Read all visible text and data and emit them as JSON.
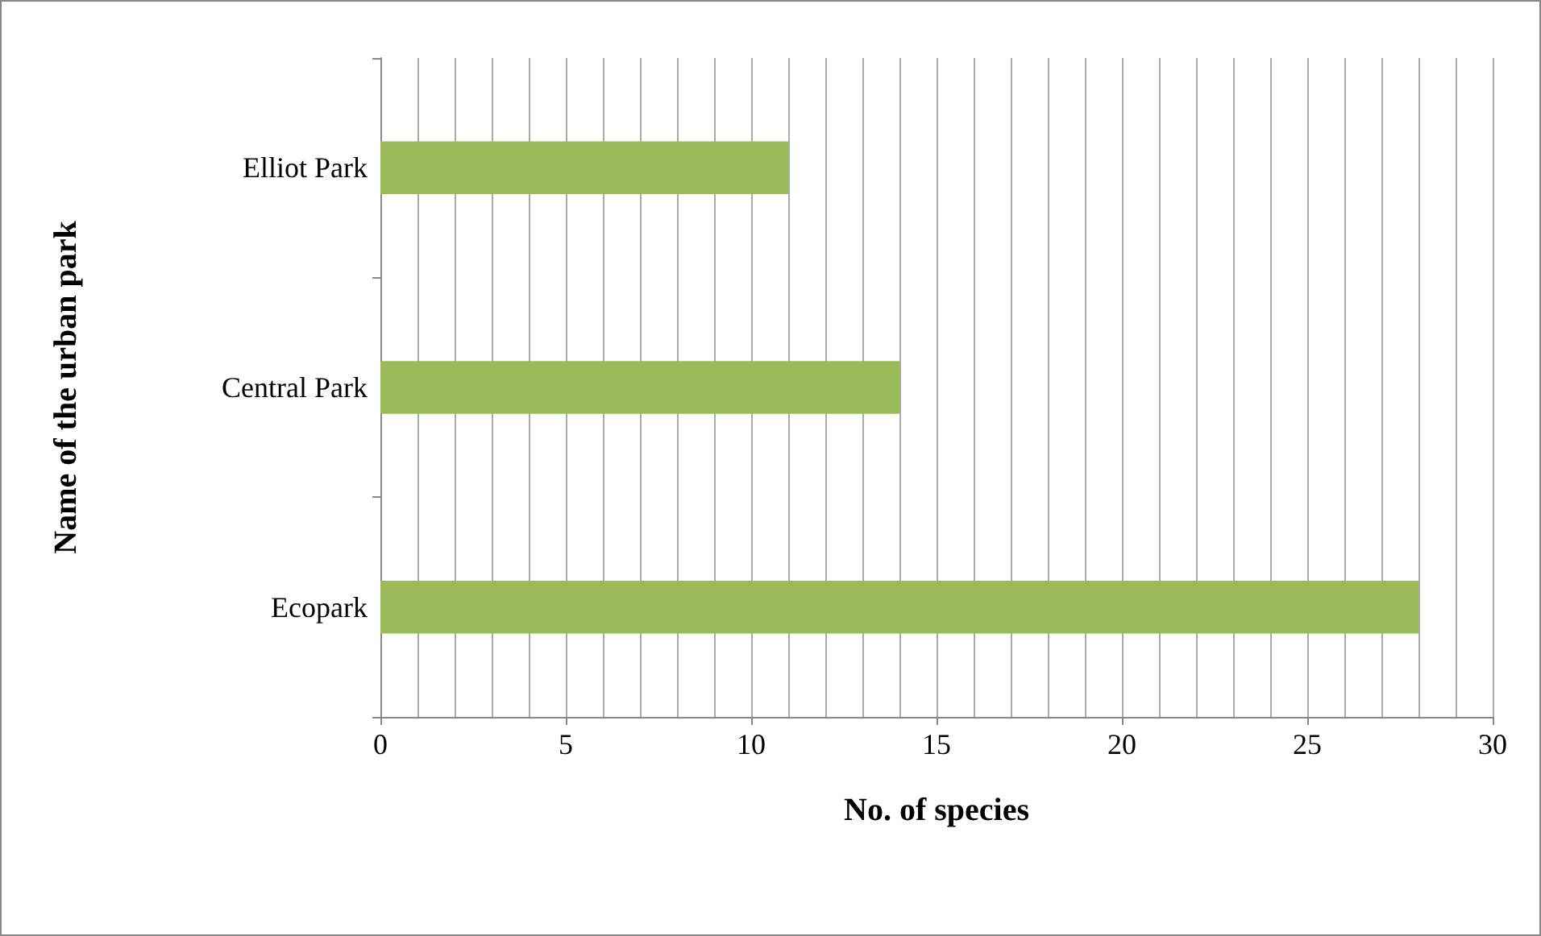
{
  "chart_data": {
    "type": "bar",
    "orientation": "horizontal",
    "xlabel": "No. of species",
    "ylabel": "Name of the urban park",
    "categories": [
      "Elliot Park",
      "Central Park",
      "Ecopark"
    ],
    "values": [
      11,
      14,
      28
    ],
    "color": "#9bbb59",
    "xlim": [
      0,
      30
    ],
    "xticks": [
      0,
      {
        "value": 1,
        "label": null
      },
      {
        "value": 2,
        "label": null
      },
      {
        "value": 3,
        "label": null
      },
      {
        "value": 4,
        "label": null
      },
      5,
      {
        "value": 6,
        "label": null
      },
      {
        "value": 7,
        "label": null
      },
      {
        "value": 8,
        "label": null
      },
      {
        "value": 9,
        "label": null
      },
      10,
      {
        "value": 11,
        "label": null
      },
      {
        "value": 12,
        "label": null
      },
      {
        "value": 13,
        "label": null
      },
      {
        "value": 14,
        "label": null
      },
      15,
      {
        "value": 16,
        "label": null
      },
      {
        "value": 17,
        "label": null
      },
      {
        "value": 18,
        "label": null
      },
      {
        "value": 19,
        "label": null
      },
      20,
      {
        "value": 21,
        "label": null
      },
      {
        "value": 22,
        "label": null
      },
      {
        "value": 23,
        "label": null
      },
      {
        "value": 24,
        "label": null
      },
      25,
      {
        "value": 26,
        "label": null
      },
      {
        "value": 27,
        "label": null
      },
      {
        "value": 28,
        "label": null
      },
      {
        "value": 29,
        "label": null
      },
      30
    ],
    "grid": "x"
  }
}
